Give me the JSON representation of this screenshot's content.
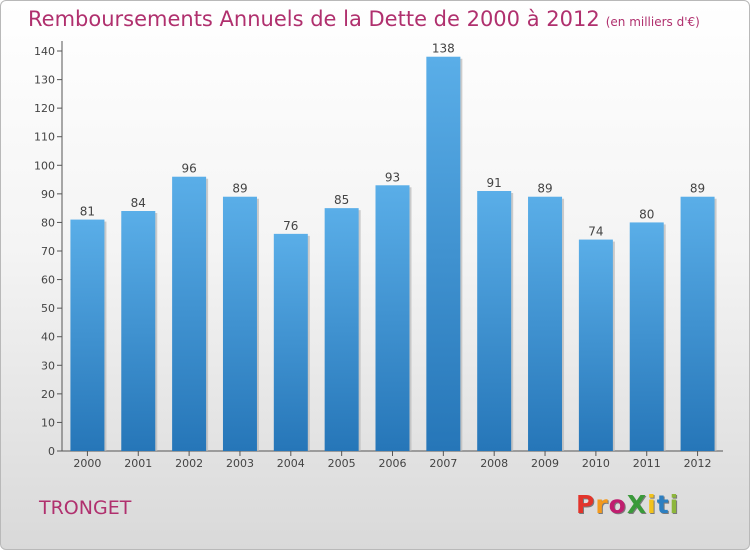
{
  "chart_data": {
    "type": "bar",
    "title": "Remboursements Annuels de la Dette de 2000 à 2012",
    "unit_label": "(en milliers d'€)",
    "categories": [
      "2000",
      "2001",
      "2002",
      "2003",
      "2004",
      "2005",
      "2006",
      "2007",
      "2008",
      "2009",
      "2010",
      "2011",
      "2012"
    ],
    "values": [
      81,
      84,
      96,
      89,
      76,
      85,
      93,
      138,
      91,
      89,
      74,
      80,
      89
    ],
    "ylim": [
      0,
      140
    ],
    "yticks": [
      0,
      10,
      20,
      30,
      40,
      50,
      60,
      70,
      80,
      90,
      100,
      110,
      120,
      130,
      140
    ],
    "xlabel": "",
    "ylabel": "",
    "grid": false,
    "bar_color_top": "#5aaee8",
    "bar_color_bottom": "#2676b8"
  },
  "footer": {
    "town": "TRONGET",
    "logo_text": "ProXiti",
    "logo_colors": [
      "#e2342b",
      "#f39a1e",
      "#c01e6f",
      "#3a9a3a",
      "#f2c21b",
      "#2c7fc1",
      "#8db63c"
    ]
  },
  "colors": {
    "title": "#b0306e"
  }
}
